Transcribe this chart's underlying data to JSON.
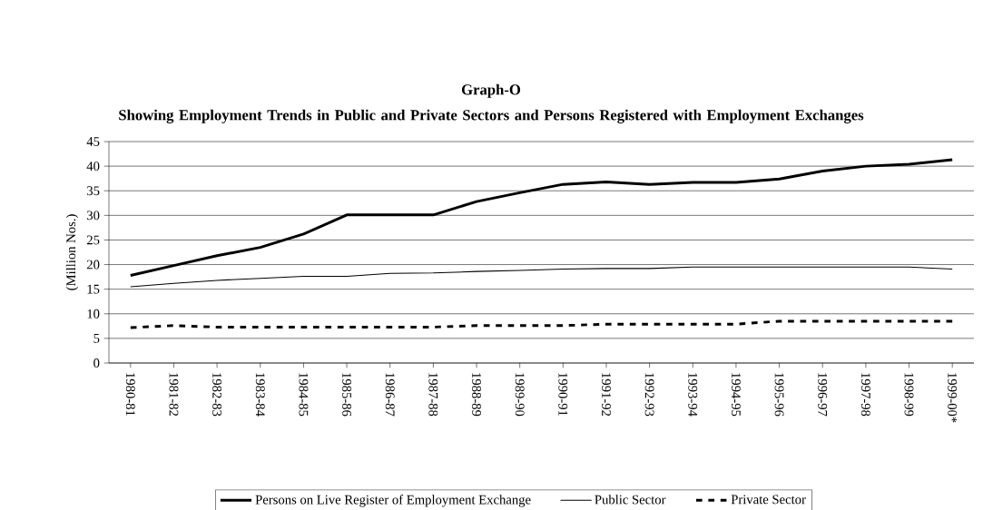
{
  "chart_data": {
    "type": "line",
    "title": "Graph-O",
    "subtitle": "Showing Employment Trends in Public and Private Sectors and Persons Registered with Employment Exchanges",
    "ylabel": "(Million Nos.)",
    "categories": [
      "1980-81",
      "1981-82",
      "1982-83",
      "1983-84",
      "1984-85",
      "1985-86",
      "1986-87",
      "1987-88",
      "1988-89",
      "1989-90",
      "1990-91",
      "1991-92",
      "1992-93",
      "1993-94",
      "1994-95",
      "1995-96",
      "1996-97",
      "1997-98",
      "1998-99",
      "1999-00*"
    ],
    "series": [
      {
        "name": "Persons on Live Register of Employment Exchange",
        "color": "#000000",
        "line_style": "solid",
        "values": [
          17.8,
          19.8,
          21.8,
          23.5,
          26.2,
          30.1,
          30.1,
          30.1,
          32.8,
          34.6,
          36.3,
          36.8,
          36.3,
          36.7,
          36.7,
          37.4,
          39.0,
          40.0,
          40.4,
          41.3
        ]
      },
      {
        "name": "Public Sector",
        "color": "#000000",
        "line_style": "solid",
        "values": [
          15.5,
          16.2,
          16.8,
          17.2,
          17.6,
          17.6,
          18.2,
          18.3,
          18.6,
          18.8,
          19.1,
          19.2,
          19.2,
          19.5,
          19.5,
          19.5,
          19.5,
          19.5,
          19.5,
          19.1
        ]
      },
      {
        "name": "Private Sector",
        "color": "#000000",
        "line_style": "dashed",
        "values": [
          7.2,
          7.6,
          7.3,
          7.3,
          7.3,
          7.3,
          7.3,
          7.3,
          7.6,
          7.6,
          7.6,
          7.9,
          7.9,
          7.9,
          7.9,
          8.5,
          8.5,
          8.5,
          8.5,
          8.5
        ]
      }
    ],
    "ylim": [
      0,
      45
    ],
    "yticks": [
      0,
      5,
      10,
      15,
      20,
      25,
      30,
      35,
      40,
      45
    ],
    "grid": "y",
    "legend": "bottom",
    "marker": "none"
  }
}
